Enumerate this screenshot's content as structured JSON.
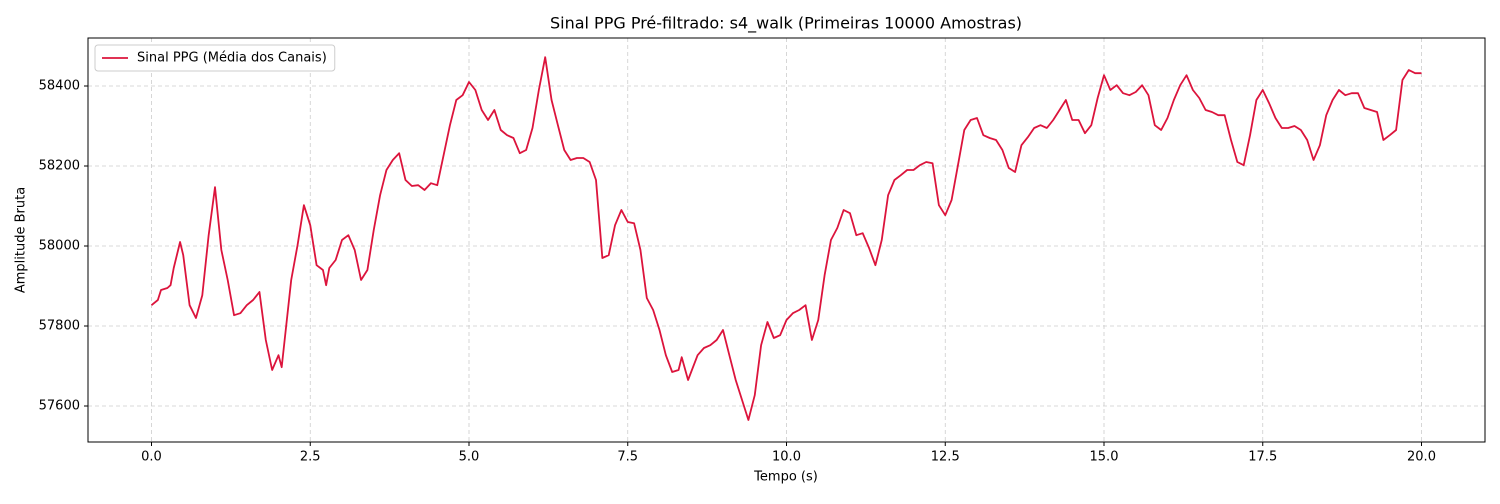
{
  "chart_data": {
    "type": "line",
    "title": "Sinal PPG Pré-filtrado: s4_walk (Primeiras 10000 Amostras)",
    "xlabel": "Tempo (s)",
    "ylabel": "Amplitude Bruta",
    "x": [
      0.0,
      0.1,
      0.15,
      0.25,
      0.3,
      0.35,
      0.45,
      0.5,
      0.6,
      0.7,
      0.8,
      0.9,
      1.0,
      1.1,
      1.2,
      1.3,
      1.4,
      1.5,
      1.6,
      1.7,
      1.8,
      1.9,
      2.0,
      2.05,
      2.2,
      2.3,
      2.4,
      2.5,
      2.6,
      2.7,
      2.75,
      2.8,
      2.9,
      3.0,
      3.1,
      3.2,
      3.3,
      3.4,
      3.5,
      3.6,
      3.7,
      3.8,
      3.9,
      4.0,
      4.1,
      4.2,
      4.3,
      4.4,
      4.5,
      4.6,
      4.7,
      4.8,
      4.9,
      5.0,
      5.1,
      5.2,
      5.3,
      5.4,
      5.5,
      5.6,
      5.7,
      5.8,
      5.9,
      6.0,
      6.1,
      6.2,
      6.3,
      6.4,
      6.5,
      6.6,
      6.7,
      6.8,
      6.9,
      7.0,
      7.1,
      7.2,
      7.3,
      7.4,
      7.5,
      7.6,
      7.7,
      7.8,
      7.9,
      8.0,
      8.1,
      8.2,
      8.3,
      8.35,
      8.45,
      8.6,
      8.7,
      8.8,
      8.9,
      9.0,
      9.1,
      9.2,
      9.3,
      9.4,
      9.5,
      9.6,
      9.7,
      9.8,
      9.9,
      10.0,
      10.1,
      10.2,
      10.3,
      10.4,
      10.5,
      10.6,
      10.7,
      10.8,
      10.9,
      11.0,
      11.1,
      11.2,
      11.3,
      11.4,
      11.5,
      11.6,
      11.7,
      11.8,
      11.9,
      12.0,
      12.1,
      12.2,
      12.3,
      12.4,
      12.5,
      12.6,
      12.7,
      12.8,
      12.9,
      13.0,
      13.1,
      13.2,
      13.3,
      13.4,
      13.5,
      13.6,
      13.7,
      13.8,
      13.9,
      14.0,
      14.1,
      14.2,
      14.3,
      14.4,
      14.5,
      14.6,
      14.7,
      14.8,
      14.9,
      15.0,
      15.1,
      15.2,
      15.3,
      15.4,
      15.5,
      15.6,
      15.7,
      15.8,
      15.9,
      16.0,
      16.1,
      16.2,
      16.3,
      16.4,
      16.5,
      16.6,
      16.7,
      16.8,
      16.9,
      17.0,
      17.1,
      17.2,
      17.3,
      17.4,
      17.5,
      17.6,
      17.7,
      17.8,
      17.9,
      18.0,
      18.1,
      18.2,
      18.3,
      18.4,
      18.5,
      18.6,
      18.7,
      18.8,
      18.9,
      19.0,
      19.1,
      19.2,
      19.3,
      19.4,
      19.5,
      19.6,
      19.7,
      19.8,
      19.9,
      20.0
    ],
    "series": [
      {
        "name": "Sinal PPG (Média dos Canais)",
        "color": "#dc143c",
        "values": [
          57852,
          57865,
          57890,
          57895,
          57902,
          57945,
          58010,
          57977,
          57852,
          57820,
          57877,
          58027,
          58147,
          57990,
          57915,
          57827,
          57832,
          57852,
          57865,
          57885,
          57765,
          57690,
          57727,
          57697,
          57915,
          58002,
          58102,
          58052,
          57952,
          57940,
          57902,
          57945,
          57965,
          58015,
          58027,
          57990,
          57915,
          57940,
          58040,
          58127,
          58190,
          58215,
          58232,
          58165,
          58150,
          58152,
          58140,
          58157,
          58152,
          58227,
          58302,
          58365,
          58377,
          58410,
          58390,
          58340,
          58315,
          58340,
          58290,
          58277,
          58270,
          58232,
          58240,
          58295,
          58390,
          58472,
          58365,
          58302,
          58240,
          58215,
          58220,
          58220,
          58210,
          58165,
          57970,
          57977,
          58052,
          58090,
          58060,
          58057,
          57990,
          57870,
          57840,
          57790,
          57727,
          57685,
          57690,
          57722,
          57665,
          57727,
          57745,
          57752,
          57765,
          57790,
          57727,
          57665,
          57615,
          57565,
          57627,
          57752,
          57810,
          57770,
          57777,
          57815,
          57832,
          57840,
          57852,
          57765,
          57815,
          57927,
          58015,
          58045,
          58090,
          58082,
          58027,
          58032,
          57995,
          57952,
          58015,
          58127,
          58165,
          58177,
          58190,
          58190,
          58202,
          58210,
          58207,
          58102,
          58077,
          58115,
          58202,
          58290,
          58315,
          58320,
          58277,
          58270,
          58265,
          58240,
          58195,
          58185,
          58252,
          58272,
          58295,
          58302,
          58295,
          58315,
          58340,
          58365,
          58315,
          58315,
          58282,
          58302,
          58370,
          58427,
          58390,
          58402,
          58382,
          58377,
          58385,
          58402,
          58377,
          58302,
          58290,
          58320,
          58365,
          58402,
          58427,
          58390,
          58370,
          58340,
          58335,
          58327,
          58327,
          58265,
          58210,
          58202,
          58277,
          58365,
          58390,
          58357,
          58320,
          58295,
          58295,
          58300,
          58290,
          58265,
          58215,
          58252,
          58327,
          58365,
          58390,
          58377,
          58382,
          58382,
          58345,
          58340,
          58335,
          58265,
          58277,
          58290,
          58415,
          58440,
          58432,
          58432
        ]
      }
    ],
    "xlim": [
      -1.0,
      21.0
    ],
    "ylim": [
      57510,
      58520
    ],
    "xticks": [
      {
        "value": 0,
        "label": "0.0"
      },
      2.5,
      {
        "value": 5,
        "label": "5.0"
      },
      7.5,
      {
        "value": 10,
        "label": "10.0"
      },
      12.5,
      {
        "value": 15,
        "label": "15.0"
      },
      17.5,
      {
        "value": 20,
        "label": "20.0"
      }
    ],
    "yticks": [
      57600,
      57800,
      58000,
      58200,
      58400
    ],
    "grid": true,
    "legend": "upper left"
  }
}
